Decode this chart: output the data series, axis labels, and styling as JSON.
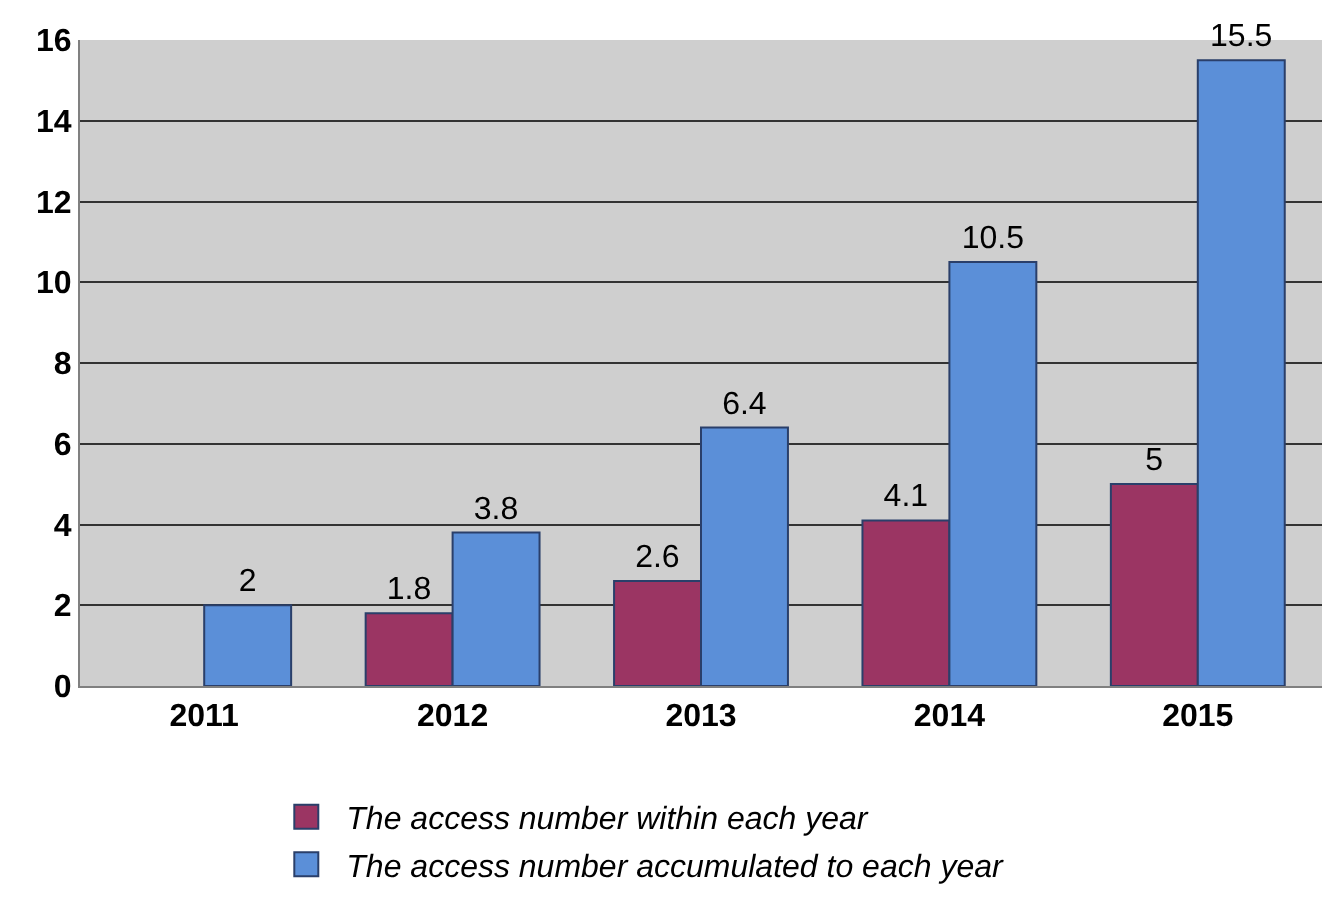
{
  "chart_data": {
    "type": "bar",
    "categories": [
      "2011",
      "2012",
      "2013",
      "2014",
      "2015"
    ],
    "series": [
      {
        "name": "The access number within each year",
        "color": "#9b3563",
        "values": [
          null,
          1.8,
          2.6,
          4.1,
          5
        ]
      },
      {
        "name": "The access number accumulated to each year",
        "color": "#5b8fd8",
        "values": [
          2,
          3.8,
          6.4,
          10.5,
          15.5
        ]
      }
    ],
    "ylim": [
      0,
      16
    ],
    "yticks": [
      0,
      2,
      4,
      6,
      8,
      10,
      12,
      14,
      16
    ],
    "grid": "y",
    "legend": "bottom",
    "data_labels": true
  }
}
